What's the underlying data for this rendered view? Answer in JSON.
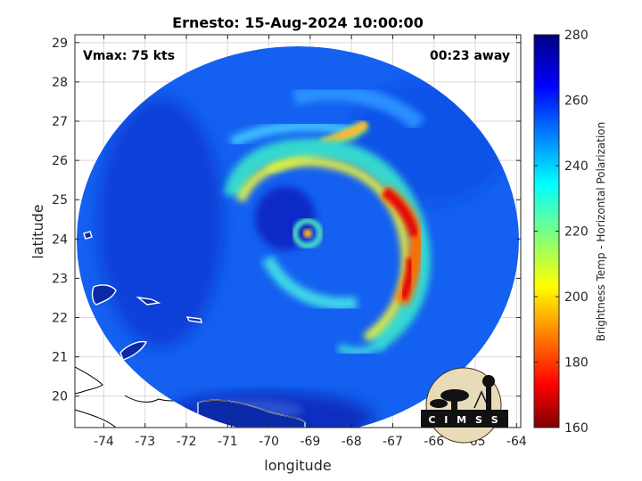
{
  "title": "Ernesto: 15-Aug-2024 10:00:00",
  "vmax_label": "Vmax: 75 kts",
  "time_away_label": "00:23 away",
  "logo_text": "C I M S S",
  "map": {
    "xlabel": "longitude",
    "ylabel": "latitude",
    "xlim": [
      -74.7,
      -63.9
    ],
    "ylim": [
      19.2,
      29.2
    ],
    "x_ticks": [
      "-74",
      "-73",
      "-72",
      "-71",
      "-70",
      "-69",
      "-68",
      "-67",
      "-66",
      "-65",
      "-64"
    ],
    "y_ticks": [
      "20",
      "21",
      "22",
      "23",
      "24",
      "25",
      "26",
      "27",
      "28",
      "29"
    ],
    "grid": true,
    "storm_center": {
      "lon": -69.1,
      "lat": 24.1
    }
  },
  "colorbar": {
    "label": "Brightness Temp - Horizontal Polarization",
    "min": 160,
    "max": 280,
    "ticks": [
      "160",
      "180",
      "200",
      "220",
      "240",
      "260",
      "280"
    ],
    "colormap": "jet"
  }
}
